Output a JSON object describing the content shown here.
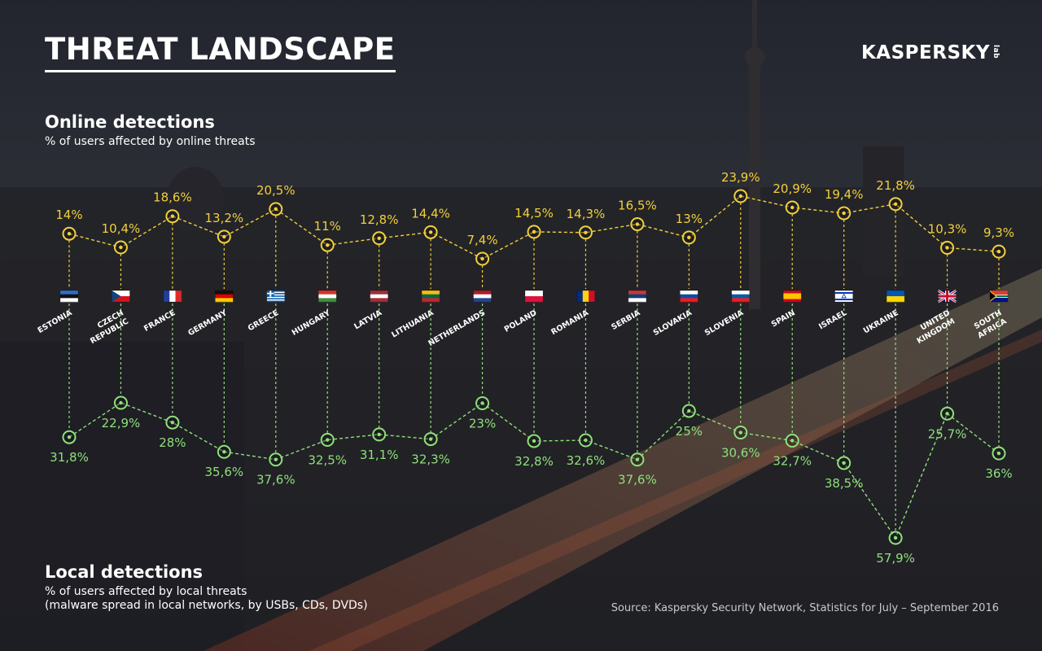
{
  "header": {
    "title": "THREAT LANDSCAPE",
    "logo_main": "KASPERSKY",
    "logo_suffix": "lab"
  },
  "online_section": {
    "title": "Online detections",
    "subtitle": "% of users affected by online threats"
  },
  "local_section": {
    "title": "Local detections",
    "subtitle_line1": "% of users affected by local threats",
    "subtitle_line2": "(malware spread in local networks, by USBs, CDs, DVDs)"
  },
  "source": "Source: Kaspersky Security Network, Statistics for July – September 2016",
  "colors": {
    "online": "#f3cf3a",
    "local": "#8fe07a",
    "text": "#ffffff"
  },
  "chart_data": {
    "type": "line",
    "categories": [
      "ESTONIA",
      "CZECH REPUBLIC",
      "FRANCE",
      "GERMANY",
      "GREECE",
      "HUNGARY",
      "LATVIA",
      "LITHUANIA",
      "NETHERLANDS",
      "POLAND",
      "ROMANIA",
      "SERBIA",
      "SLOVAKIA",
      "SLOVENIA",
      "SPAIN",
      "ISRAEL",
      "UKRAINE",
      "UNITED KINGDOM",
      "SOUTH AFRICA"
    ],
    "series": [
      {
        "name": "Online detections",
        "values": [
          14,
          10.4,
          18.6,
          13.2,
          20.5,
          11,
          12.8,
          14.4,
          7.4,
          14.5,
          14.3,
          16.5,
          13,
          23.9,
          20.9,
          19.4,
          21.8,
          10.3,
          9.3
        ],
        "labels": [
          "14%",
          "10,4%",
          "18,6%",
          "13,2%",
          "20,5%",
          "11%",
          "12,8%",
          "14,4%",
          "7,4%",
          "14,5%",
          "14,3%",
          "16,5%",
          "13%",
          "23,9%",
          "20,9%",
          "19,4%",
          "21,8%",
          "10,3%",
          "9,3%"
        ]
      },
      {
        "name": "Local detections",
        "values": [
          31.8,
          22.9,
          28,
          35.6,
          37.6,
          32.5,
          31.1,
          32.3,
          23,
          32.8,
          32.6,
          37.6,
          25,
          30.6,
          32.7,
          38.5,
          57.9,
          25.7,
          36
        ],
        "labels": [
          "31,8%",
          "22,9%",
          "28%",
          "35,6%",
          "37,6%",
          "32,5%",
          "31,1%",
          "32,3%",
          "23%",
          "32,8%",
          "32,6%",
          "37,6%",
          "25%",
          "30,6%",
          "32,7%",
          "38,5%",
          "57,9%",
          "25,7%",
          "36%"
        ]
      }
    ]
  }
}
